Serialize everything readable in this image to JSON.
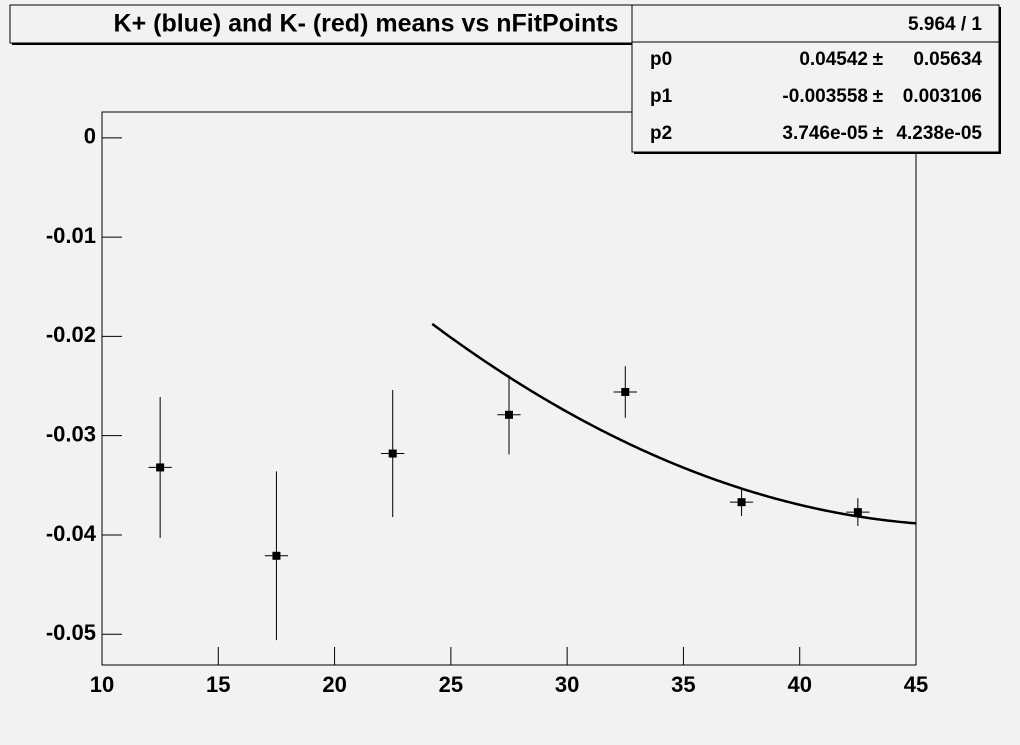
{
  "chart_data": {
    "type": "scatter",
    "title": "K+ (blue) and K- (red) means vs nFitPoints",
    "xlim": [
      10,
      45
    ],
    "ylim": [
      -0.0531,
      0.0026
    ],
    "xticks": [
      10,
      15,
      20,
      25,
      30,
      35,
      40,
      45
    ],
    "yticks": [
      0,
      -0.01,
      -0.02,
      -0.03,
      -0.04,
      -0.05
    ],
    "series": [
      {
        "color": "#000000",
        "x": [
          12.5,
          17.5,
          22.5,
          27.5,
          32.5,
          37.5,
          42.5
        ],
        "xerrors": [
          0.5,
          0.5,
          0.5,
          0.5,
          0.5,
          0.5,
          0.5
        ],
        "values": [
          -0.0332,
          -0.0421,
          -0.0318,
          -0.0279,
          -0.0256,
          -0.0367,
          -0.0377
        ],
        "errors": [
          0.0071,
          0.0085,
          0.0064,
          0.004,
          0.0026,
          0.0014,
          0.0014
        ]
      }
    ],
    "fit": {
      "color": "#000000",
      "range": [
        24.2,
        45
      ],
      "chi2_ndf": "5.964 / 1",
      "separator": "±",
      "params": [
        {
          "name": "p0",
          "value": 0.04542,
          "error": 0.05634
        },
        {
          "name": "p1",
          "value": -0.003558,
          "error": 0.003106
        },
        {
          "name": "p2",
          "value": {
            "value": 3.746e-05,
            "label": "3.746e-05"
          },
          "error": {
            "value": 4.238e-05,
            "label": "4.238e-05"
          }
        }
      ]
    }
  }
}
